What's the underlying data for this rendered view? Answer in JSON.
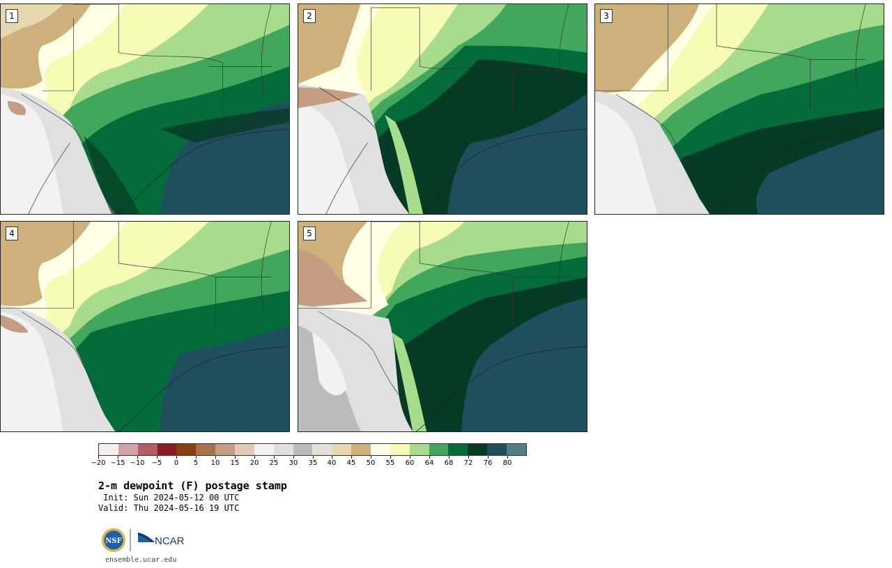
{
  "panels": [
    {
      "label": "1"
    },
    {
      "label": "2"
    },
    {
      "label": "3"
    },
    {
      "label": "4"
    },
    {
      "label": "5"
    }
  ],
  "colorbar": {
    "colors": [
      "#f5eeee",
      "#d4a1a6",
      "#b35d66",
      "#8b1a24",
      "#8a3f0f",
      "#a8704c",
      "#c69c82",
      "#e4c9ba",
      "#f2f2f2",
      "#e0e0e0",
      "#bcbcbc",
      "#e3e1d7",
      "#e7d8b0",
      "#cdb07a",
      "#ffffe5",
      "#f6fbb6",
      "#a6dc8b",
      "#42a75c",
      "#046c3b",
      "#053a24",
      "#1f4f5e",
      "#4f7f89"
    ],
    "ticks": [
      "−20",
      "−15",
      "−10",
      "−5",
      "0",
      "5",
      "10",
      "15",
      "20",
      "25",
      "30",
      "35",
      "40",
      "45",
      "50",
      "55",
      "60",
      "64",
      "68",
      "72",
      "76",
      "80"
    ]
  },
  "title": "2-m dewpoint (F) postage stamp",
  "init": " Init: Sun 2024-05-12 00 UTC",
  "valid": "Valid: Thu 2024-05-16 19 UTC",
  "logo": {
    "nsf": "NSF",
    "ncar": "NCAR"
  },
  "url": "ensemble.ucar.edu"
}
